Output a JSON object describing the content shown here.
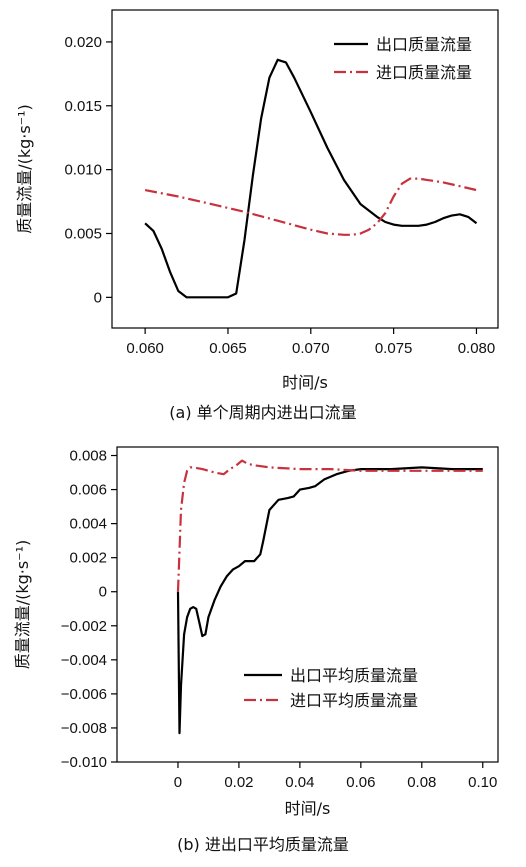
{
  "chart_data": [
    {
      "type": "line",
      "caption": "(a) 单个周期内进出口流量",
      "xlabel": "时间/s",
      "ylabel": "质量流量/(kg·s⁻¹)",
      "xlim": [
        0.058,
        0.0813
      ],
      "ylim": [
        -0.0024,
        0.0225
      ],
      "x_ticks": [
        0.06,
        0.065,
        0.07,
        0.075,
        0.08
      ],
      "x_tick_labels": [
        "0.060",
        "0.065",
        "0.070",
        "0.075",
        "0.080"
      ],
      "y_ticks": [
        0,
        0.005,
        0.01,
        0.015,
        0.02
      ],
      "y_tick_labels": [
        "0",
        "0.005",
        "0.010",
        "0.015",
        "0.020"
      ],
      "grid": false,
      "legend_position": "top-right",
      "series": [
        {
          "name": "出口质量流量",
          "color": "#000000",
          "style": "solid",
          "x": [
            0.06,
            0.0605,
            0.061,
            0.0615,
            0.062,
            0.0625,
            0.063,
            0.064,
            0.065,
            0.0655,
            0.066,
            0.0665,
            0.067,
            0.0675,
            0.068,
            0.0685,
            0.069,
            0.07,
            0.071,
            0.072,
            0.073,
            0.074,
            0.0745,
            0.075,
            0.0755,
            0.076,
            0.0765,
            0.077,
            0.0775,
            0.078,
            0.0785,
            0.079,
            0.0795,
            0.08
          ],
          "y": [
            0.0058,
            0.0052,
            0.0038,
            0.002,
            0.0005,
            0.0,
            0.0,
            0.0,
            0.0,
            0.0003,
            0.0045,
            0.0095,
            0.014,
            0.0172,
            0.0186,
            0.0184,
            0.0172,
            0.0145,
            0.0117,
            0.0092,
            0.0073,
            0.0063,
            0.0059,
            0.0057,
            0.0056,
            0.0056,
            0.0056,
            0.0057,
            0.0059,
            0.0062,
            0.0064,
            0.0065,
            0.0063,
            0.0058
          ]
        },
        {
          "name": "进口质量流量",
          "color": "#c8323c",
          "style": "dash-dot",
          "x": [
            0.06,
            0.062,
            0.064,
            0.066,
            0.068,
            0.07,
            0.071,
            0.072,
            0.0725,
            0.073,
            0.0735,
            0.074,
            0.0745,
            0.075,
            0.0755,
            0.076,
            0.0765,
            0.077,
            0.078,
            0.079,
            0.08
          ],
          "y": [
            0.0084,
            0.0079,
            0.0073,
            0.0067,
            0.006,
            0.0053,
            0.005,
            0.0049,
            0.0049,
            0.005,
            0.0053,
            0.0058,
            0.0066,
            0.0079,
            0.0089,
            0.0093,
            0.0093,
            0.0092,
            0.009,
            0.0087,
            0.0084
          ]
        }
      ]
    },
    {
      "type": "line",
      "caption": "(b) 进出口平均质量流量",
      "xlabel": "时间/s",
      "ylabel": "质量流量/(kg·s⁻¹)",
      "xlim": [
        -0.02,
        0.105
      ],
      "ylim": [
        -0.01,
        0.0085
      ],
      "x_ticks": [
        0,
        0.02,
        0.04,
        0.06,
        0.08,
        0.1
      ],
      "x_tick_labels": [
        "0",
        "0.02",
        "0.04",
        "0.06",
        "0.08",
        "0.10"
      ],
      "y_ticks": [
        -0.01,
        -0.008,
        -0.006,
        -0.004,
        -0.002,
        0,
        0.002,
        0.004,
        0.006,
        0.008
      ],
      "y_tick_labels": [
        "−0.010",
        "−0.008",
        "−0.006",
        "−0.004",
        "−0.002",
        "0",
        "0.002",
        "0.004",
        "0.006",
        "0.008"
      ],
      "grid": false,
      "legend_position": "bottom-right",
      "series": [
        {
          "name": "出口平均质量流量",
          "color": "#000000",
          "style": "solid",
          "x": [
            0.0,
            0.0005,
            0.001,
            0.002,
            0.003,
            0.004,
            0.005,
            0.006,
            0.007,
            0.008,
            0.009,
            0.01,
            0.012,
            0.014,
            0.016,
            0.018,
            0.02,
            0.022,
            0.025,
            0.027,
            0.028,
            0.03,
            0.033,
            0.036,
            0.038,
            0.04,
            0.043,
            0.045,
            0.048,
            0.052,
            0.056,
            0.06,
            0.07,
            0.08,
            0.09,
            0.1
          ],
          "y": [
            0.0,
            -0.0083,
            -0.0055,
            -0.0025,
            -0.0015,
            -0.001,
            -0.0009,
            -0.001,
            -0.0018,
            -0.0026,
            -0.0025,
            -0.0015,
            -0.0005,
            0.0003,
            0.0009,
            0.0013,
            0.0015,
            0.0018,
            0.0018,
            0.0022,
            0.003,
            0.0048,
            0.0054,
            0.0055,
            0.0056,
            0.006,
            0.0061,
            0.0062,
            0.0066,
            0.0069,
            0.0071,
            0.0072,
            0.0072,
            0.0073,
            0.0072,
            0.0072
          ]
        },
        {
          "name": "进口平均质量流量",
          "color": "#c8323c",
          "style": "dash-dot",
          "x": [
            0.0,
            0.001,
            0.002,
            0.003,
            0.004,
            0.005,
            0.008,
            0.012,
            0.015,
            0.017,
            0.019,
            0.021,
            0.023,
            0.026,
            0.03,
            0.04,
            0.05,
            0.06,
            0.07,
            0.08,
            0.09,
            0.1
          ],
          "y": [
            0.0,
            0.0048,
            0.0064,
            0.0071,
            0.0073,
            0.0073,
            0.0072,
            0.007,
            0.0069,
            0.0072,
            0.0074,
            0.0077,
            0.0075,
            0.0074,
            0.0073,
            0.0072,
            0.0072,
            0.0071,
            0.0071,
            0.0071,
            0.0071,
            0.0071
          ]
        }
      ]
    }
  ]
}
